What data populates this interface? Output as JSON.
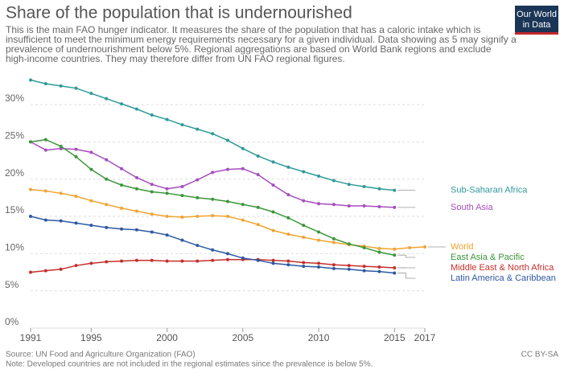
{
  "chart_data": {
    "type": "line",
    "title": "Share of the population that is undernourished",
    "subtitle": [
      "This is the main FAO hunger indicator. It measures the share of the population that has a caloric intake which is",
      "insufficient to meet the minimum energy requirements necessary for a given individual. Data showing as 5 may signify a",
      "prevalence of undernourishment below 5%. Regional aggregations are based on World Bank regions and exclude",
      "high-income countries. They may therefore differ from UN FAO regional figures."
    ],
    "logo": [
      "Our World",
      "in Data"
    ],
    "source": "Source: UN Food and Agriculture Organization (FAO)",
    "note": "Note: Developed countries are not included in the regional estimates since the prevalence is below 5%.",
    "license": "CC BY-SA",
    "x": [
      1991,
      1992,
      1993,
      1994,
      1995,
      1996,
      1997,
      1998,
      1999,
      2000,
      2001,
      2002,
      2003,
      2004,
      2005,
      2006,
      2007,
      2008,
      2009,
      2010,
      2011,
      2012,
      2013,
      2014,
      2015,
      2016,
      2017
    ],
    "xlim": [
      1991,
      2017
    ],
    "xticks": [
      1991,
      1995,
      2000,
      2005,
      2010,
      2015,
      2017
    ],
    "ylim": [
      0,
      34
    ],
    "yticks": [
      {
        "value": 0,
        "label": "0%"
      },
      {
        "value": 5,
        "label": "5%"
      },
      {
        "value": 10,
        "label": "10%"
      },
      {
        "value": 15,
        "label": "15%"
      },
      {
        "value": 20,
        "label": "20%"
      },
      {
        "value": 25,
        "label": "25%"
      },
      {
        "value": 30,
        "label": "30%"
      }
    ],
    "grid": true,
    "series": [
      {
        "name": "Sub-Saharan Africa",
        "color": "#2e9a98",
        "values": [
          33.3,
          32.8,
          32.5,
          32.2,
          31.5,
          30.8,
          30.1,
          29.4,
          28.6,
          28.0,
          27.3,
          26.7,
          26.1,
          25.2,
          24.1,
          23.1,
          22.3,
          21.6,
          21.0,
          20.4,
          19.8,
          19.3,
          19.0,
          18.7,
          18.5,
          null,
          null
        ]
      },
      {
        "name": "South Asia",
        "color": "#a64fbd",
        "values": [
          25.0,
          23.9,
          24.1,
          24.0,
          23.6,
          22.6,
          21.4,
          20.2,
          19.3,
          18.7,
          19.0,
          19.9,
          20.9,
          21.3,
          21.4,
          20.6,
          19.2,
          17.9,
          17.1,
          16.7,
          16.6,
          16.4,
          16.4,
          16.3,
          16.2,
          null,
          null
        ]
      },
      {
        "name": "World",
        "color": "#f0a432",
        "values": [
          18.6,
          18.4,
          18.1,
          17.7,
          17.1,
          16.6,
          16.1,
          15.7,
          15.3,
          15.0,
          14.9,
          15.0,
          15.1,
          15.0,
          14.5,
          13.9,
          13.1,
          12.6,
          12.2,
          11.8,
          11.5,
          11.2,
          11.0,
          10.7,
          10.6,
          10.8,
          10.9
        ]
      },
      {
        "name": "East Asia & Pacific",
        "color": "#3b9639",
        "values": [
          25.0,
          25.3,
          24.4,
          23.0,
          21.3,
          20.0,
          19.2,
          18.7,
          18.3,
          18.1,
          17.8,
          17.5,
          17.3,
          17.0,
          16.6,
          16.2,
          15.6,
          14.8,
          13.8,
          12.9,
          12.0,
          11.3,
          10.8,
          10.2,
          9.8,
          null,
          null
        ]
      },
      {
        "name": "Middle East & North Africa",
        "color": "#c4302b",
        "values": [
          7.5,
          7.7,
          7.9,
          8.4,
          8.7,
          8.9,
          9.0,
          9.1,
          9.1,
          9.0,
          9.0,
          9.0,
          9.1,
          9.2,
          9.2,
          9.2,
          9.1,
          9.0,
          8.8,
          8.7,
          8.5,
          8.4,
          8.3,
          8.2,
          8.1,
          null,
          null
        ]
      },
      {
        "name": "Latin America & Caribbean",
        "color": "#2e58a3",
        "values": [
          15.0,
          14.5,
          14.4,
          14.1,
          13.8,
          13.5,
          13.3,
          13.2,
          12.9,
          12.5,
          11.8,
          11.1,
          10.5,
          10.0,
          9.4,
          9.1,
          8.7,
          8.5,
          8.3,
          8.2,
          8.0,
          7.9,
          7.7,
          7.6,
          7.4,
          null,
          null
        ]
      }
    ]
  }
}
